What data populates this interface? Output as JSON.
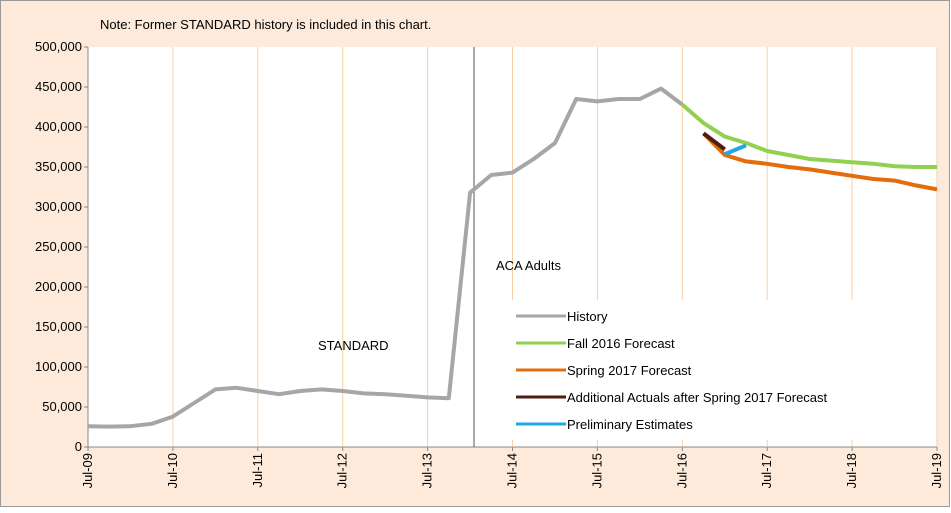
{
  "chart_data": {
    "type": "line",
    "note": "Note: Former STANDARD history is included in this chart.",
    "annotations": [
      "STANDARD",
      "ACA Adults"
    ],
    "categories": [
      "Jul-09",
      null,
      null,
      null,
      "Jul-10",
      null,
      null,
      null,
      "Jul-11",
      null,
      null,
      null,
      "Jul-12",
      null,
      null,
      null,
      "Jul-13",
      null,
      null,
      null,
      "Jul-14",
      null,
      null,
      null,
      "Jul-15",
      null,
      null,
      null,
      "Jul-16",
      null,
      null,
      null,
      "Jul-17",
      null,
      null,
      null,
      "Jul-18",
      null,
      null,
      null,
      "Jul-19"
    ],
    "series": [
      {
        "name": "History",
        "color": "#a6a6a6",
        "values": [
          26000,
          25500,
          26000,
          29000,
          38000,
          55000,
          72000,
          74000,
          70000,
          66000,
          70000,
          72000,
          70000,
          67000,
          66000,
          64000,
          62000,
          61000,
          318000,
          340000,
          343000,
          360000,
          380000,
          435000,
          432000,
          435000,
          435000,
          448000,
          428000,
          null,
          null,
          null,
          null,
          null,
          null,
          null,
          null,
          null,
          null,
          null,
          null
        ]
      },
      {
        "name": "Fall 2016 Forecast",
        "color": "#92d050",
        "values": [
          null,
          null,
          null,
          null,
          null,
          null,
          null,
          null,
          null,
          null,
          null,
          null,
          null,
          null,
          null,
          null,
          null,
          null,
          null,
          null,
          null,
          null,
          null,
          null,
          null,
          null,
          null,
          null,
          428000,
          405000,
          388000,
          380000,
          370000,
          365000,
          360000,
          358000,
          356000,
          354000,
          351000,
          350000,
          350000
        ]
      },
      {
        "name": "Spring 2017 Forecast",
        "color": "#e46c0a",
        "values": [
          null,
          null,
          null,
          null,
          null,
          null,
          null,
          null,
          null,
          null,
          null,
          null,
          null,
          null,
          null,
          null,
          null,
          null,
          null,
          null,
          null,
          null,
          null,
          null,
          null,
          null,
          null,
          null,
          null,
          392000,
          365000,
          357000,
          354000,
          350000,
          347000,
          343000,
          339000,
          335000,
          333000,
          327000,
          322000
        ]
      },
      {
        "name": "Additional Actuals after Spring 2017 Forecast",
        "color": "#4d1f12",
        "values": [
          null,
          null,
          null,
          null,
          null,
          null,
          null,
          null,
          null,
          null,
          null,
          null,
          null,
          null,
          null,
          null,
          null,
          null,
          null,
          null,
          null,
          null,
          null,
          null,
          null,
          null,
          null,
          null,
          null,
          392000,
          372000,
          null,
          null,
          null,
          null,
          null,
          null,
          null,
          null,
          null,
          null
        ]
      },
      {
        "name": "Preliminary Estimates",
        "color": "#22a7e0",
        "values": [
          null,
          null,
          null,
          null,
          null,
          null,
          null,
          null,
          null,
          null,
          null,
          null,
          null,
          null,
          null,
          null,
          null,
          null,
          null,
          null,
          null,
          null,
          null,
          null,
          null,
          null,
          null,
          null,
          null,
          null,
          366000,
          377000,
          null,
          null,
          null,
          null,
          null,
          null,
          null,
          null,
          null
        ]
      }
    ],
    "ylim": [
      0,
      500000
    ],
    "yticks": [
      0,
      {
        "value": 50000,
        "label": "50,000"
      },
      {
        "value": 100000,
        "label": "100,000"
      },
      {
        "value": 150000,
        "label": "150,000"
      },
      {
        "value": 200000,
        "label": "200,000"
      },
      {
        "value": 250000,
        "label": "250,000"
      },
      {
        "value": 300000,
        "label": "300,000"
      },
      {
        "value": 350000,
        "label": "350,000"
      },
      {
        "value": 400000,
        "label": "400,000"
      },
      {
        "value": 450000,
        "label": "450,000"
      },
      {
        "value": 500000,
        "label": "500,000"
      }
    ],
    "grid": true
  }
}
